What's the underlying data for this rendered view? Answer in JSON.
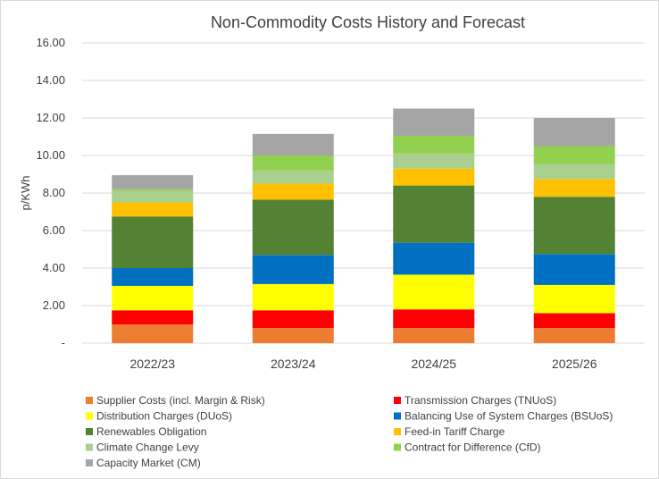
{
  "chart_data": {
    "type": "bar",
    "stacked": true,
    "title": "Non-Commodity Costs History and Forecast",
    "ylabel": "p/KWh",
    "xlabel": "",
    "ylim": [
      0,
      16
    ],
    "yticks": [
      0,
      2,
      4,
      6,
      8,
      10,
      12,
      14,
      16
    ],
    "ytick_labels": [
      "-",
      "2.00",
      "4.00",
      "6.00",
      "8.00",
      "10.00",
      "12.00",
      "14.00",
      "16.00"
    ],
    "grid": true,
    "legend_position": "bottom",
    "categories": [
      "2022/23",
      "2023/24",
      "2024/25",
      "2025/26"
    ],
    "series": [
      {
        "name": "Supplier Costs (incl. Margin & Risk)",
        "color": "#ED7D31",
        "values": [
          1.0,
          0.8,
          0.8,
          0.8
        ]
      },
      {
        "name": "Transmission Charges (TNUoS)",
        "color": "#FF0000",
        "values": [
          0.75,
          0.95,
          1.0,
          0.8
        ]
      },
      {
        "name": "Distribution Charges (DUoS)",
        "color": "#FFFF00",
        "values": [
          1.3,
          1.4,
          1.85,
          1.5
        ]
      },
      {
        "name": "Balancing Use of System Charges (BSUoS)",
        "color": "#0070C0",
        "values": [
          0.95,
          1.55,
          1.7,
          1.65
        ]
      },
      {
        "name": "Renewables Obligation",
        "color": "#548235",
        "values": [
          2.75,
          2.95,
          3.05,
          3.05
        ]
      },
      {
        "name": "Feed-in Tariff Charge",
        "color": "#FFC000",
        "values": [
          0.75,
          0.85,
          0.9,
          0.95
        ]
      },
      {
        "name": "Climate Change Levy",
        "color": "#A9D08E",
        "values": [
          0.6,
          0.7,
          0.8,
          0.8
        ]
      },
      {
        "name": "Contract for Difference (CfD)",
        "color": "#92D050",
        "values": [
          0.1,
          0.8,
          0.95,
          0.95
        ]
      },
      {
        "name": "Capacity Market (CM)",
        "color": "#A5A5A5",
        "values": [
          0.75,
          1.15,
          1.45,
          1.5
        ]
      }
    ]
  }
}
